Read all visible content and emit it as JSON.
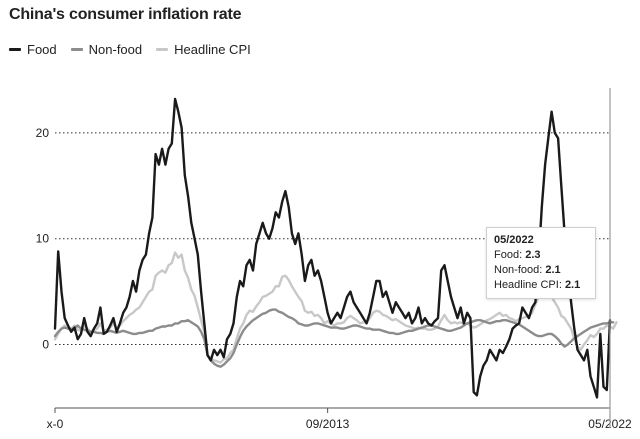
{
  "chart_data": {
    "type": "line",
    "title": "China's consumer inflation rate",
    "legend": [
      "Food",
      "Non-food",
      "Headline CPI"
    ],
    "x_tick_labels": [
      "x-0",
      "09/2013",
      "05/2022"
    ],
    "y_ticks": [
      0,
      10,
      20
    ],
    "ylim": [
      -6,
      25
    ],
    "series": [
      {
        "name": "Food",
        "color": "#1a1a1a",
        "values": [
          1.5,
          8.8,
          5.0,
          2.5,
          1.8,
          1.2,
          1.6,
          0.5,
          1.0,
          2.5,
          1.2,
          0.8,
          1.5,
          2.0,
          3.5,
          1.0,
          1.2,
          1.8,
          2.5,
          1.2,
          2.0,
          3.0,
          3.5,
          4.5,
          6.0,
          5.0,
          7.0,
          8.0,
          8.5,
          10.5,
          12.0,
          18.0,
          17.0,
          18.5,
          17.0,
          18.5,
          19.0,
          23.2,
          22.0,
          20.5,
          16.0,
          14.0,
          11.5,
          10.0,
          8.5,
          5.0,
          2.0,
          -1.0,
          -1.5,
          -0.5,
          -1.0,
          -0.5,
          -1.2,
          0.5,
          1.0,
          2.0,
          4.5,
          6.0,
          5.5,
          7.5,
          8.0,
          7.0,
          9.5,
          10.5,
          11.5,
          10.5,
          10.0,
          11.0,
          12.5,
          12.0,
          13.5,
          14.5,
          13.0,
          10.5,
          9.5,
          10.5,
          8.5,
          6.0,
          7.5,
          8.0,
          6.5,
          7.0,
          6.0,
          4.5,
          3.0,
          2.0,
          2.5,
          3.0,
          2.5,
          3.5,
          4.5,
          5.0,
          4.0,
          3.5,
          3.0,
          2.5,
          2.0,
          3.0,
          4.5,
          6.0,
          6.0,
          4.5,
          5.0,
          4.0,
          3.0,
          4.0,
          3.5,
          3.0,
          2.5,
          3.0,
          2.0,
          2.5,
          3.5,
          2.0,
          2.5,
          2.0,
          1.8,
          2.2,
          2.5,
          7.0,
          7.5,
          6.0,
          4.5,
          3.5,
          2.5,
          3.5,
          2.0,
          3.0,
          2.5,
          -4.5,
          -4.8,
          -3.0,
          -2.0,
          -1.5,
          -0.5,
          -1.0,
          -1.5,
          -0.5,
          -0.8,
          -0.2,
          0.5,
          1.5,
          1.8,
          2.0,
          3.5,
          3.0,
          2.5,
          3.5,
          4.0,
          8.0,
          13.0,
          17.0,
          19.5,
          22.0,
          20.0,
          19.5,
          15.0,
          10.5,
          7.0,
          4.0,
          1.5,
          -0.5,
          -1.0,
          -1.5,
          -0.5,
          -3.0,
          -4.0,
          -5.0,
          1.0,
          -4.0,
          -4.3,
          2.3
        ]
      },
      {
        "name": "Non-food",
        "color": "#8c8c8c",
        "values": [
          0.8,
          1.2,
          1.5,
          1.6,
          1.5,
          1.4,
          1.6,
          1.8,
          1.5,
          1.4,
          1.3,
          1.2,
          1.2,
          1.1,
          1.1,
          1.0,
          1.2,
          1.3,
          1.2,
          1.1,
          1.2,
          1.3,
          1.2,
          1.1,
          1.0,
          1.0,
          1.1,
          1.1,
          1.2,
          1.3,
          1.3,
          1.5,
          1.6,
          1.7,
          1.7,
          1.8,
          1.8,
          2.0,
          2.0,
          2.2,
          2.2,
          2.3,
          2.1,
          1.9,
          1.7,
          1.2,
          0.5,
          -1.0,
          -1.5,
          -1.8,
          -2.0,
          -2.1,
          -1.9,
          -1.6,
          -1.3,
          -0.8,
          0.0,
          0.7,
          1.3,
          1.7,
          2.0,
          2.3,
          2.5,
          2.7,
          2.9,
          3.0,
          3.2,
          3.3,
          3.3,
          3.1,
          3.0,
          2.8,
          2.6,
          2.5,
          2.3,
          2.0,
          1.9,
          1.8,
          1.8,
          1.9,
          2.0,
          2.0,
          1.9,
          1.8,
          1.7,
          1.6,
          1.6,
          1.6,
          1.5,
          1.5,
          1.6,
          1.7,
          1.8,
          1.8,
          1.7,
          1.6,
          1.5,
          1.5,
          1.4,
          1.4,
          1.4,
          1.3,
          1.2,
          1.1,
          1.1,
          1.0,
          1.0,
          1.1,
          1.2,
          1.3,
          1.3,
          1.4,
          1.5,
          1.6,
          1.7,
          1.8,
          1.8,
          1.7,
          1.6,
          1.5,
          1.4,
          1.3,
          1.3,
          1.4,
          1.5,
          1.6,
          1.8,
          2.0,
          2.1,
          2.2,
          2.3,
          2.3,
          2.2,
          2.1,
          2.0,
          2.1,
          2.2,
          2.2,
          2.3,
          2.3,
          2.2,
          2.1,
          2.0,
          1.9,
          1.7,
          1.5,
          1.3,
          1.1,
          0.9,
          0.8,
          0.8,
          0.9,
          1.0,
          1.0,
          0.8,
          0.5,
          0.1,
          -0.2,
          0.0,
          0.3,
          0.6,
          0.8,
          1.0,
          1.2,
          1.4,
          1.6,
          1.7,
          1.8,
          1.9,
          2.0,
          2.0,
          2.1,
          2.1
        ]
      },
      {
        "name": "Headline CPI",
        "color": "#c8c8c8",
        "values": [
          0.5,
          1.0,
          1.5,
          1.8,
          1.6,
          1.5,
          1.8,
          1.4,
          1.3,
          1.8,
          1.5,
          1.2,
          1.4,
          1.5,
          2.0,
          1.3,
          1.4,
          1.6,
          2.0,
          1.5,
          1.8,
          2.2,
          2.5,
          2.8,
          3.0,
          3.3,
          3.5,
          4.0,
          4.5,
          5.0,
          5.2,
          6.5,
          6.8,
          7.0,
          6.8,
          7.5,
          7.7,
          8.7,
          8.2,
          8.5,
          7.0,
          6.3,
          5.2,
          4.6,
          3.5,
          2.3,
          1.2,
          -1.0,
          -1.3,
          -1.5,
          -1.6,
          -1.7,
          -1.4,
          -1.3,
          -0.8,
          -0.5,
          0.6,
          1.5,
          2.0,
          2.8,
          3.2,
          3.1,
          3.6,
          4.0,
          4.5,
          4.6,
          4.8,
          5.0,
          5.5,
          5.5,
          6.4,
          6.5,
          6.1,
          5.5,
          5.0,
          4.5,
          4.1,
          3.2,
          3.0,
          3.1,
          2.7,
          2.8,
          2.5,
          2.0,
          2.2,
          2.0,
          1.8,
          2.0,
          2.0,
          2.1,
          2.5,
          2.7,
          2.5,
          2.3,
          2.0,
          2.1,
          2.1,
          2.5,
          3.0,
          3.2,
          3.1,
          2.8,
          2.7,
          2.5,
          2.3,
          2.4,
          2.2,
          2.0,
          1.8,
          1.7,
          1.6,
          1.5,
          1.6,
          1.5,
          1.5,
          1.4,
          1.4,
          1.5,
          1.7,
          2.3,
          2.8,
          2.3,
          2.0,
          2.1,
          2.0,
          2.1,
          1.9,
          2.0,
          1.8,
          1.6,
          1.7,
          1.9,
          2.1,
          2.3,
          2.4,
          2.6,
          2.8,
          3.0,
          2.7,
          2.8,
          2.5,
          2.4,
          2.2,
          2.4,
          2.5,
          2.6,
          2.7,
          3.0,
          3.8,
          4.5,
          5.0,
          5.2,
          4.8,
          4.5,
          4.0,
          3.5,
          2.7,
          2.5,
          2.0,
          1.5,
          0.5,
          -0.2,
          -0.5,
          0.0,
          0.4,
          0.9,
          0.7,
          1.0,
          1.5,
          1.5,
          1.8,
          1.7,
          1.5,
          2.1
        ]
      }
    ],
    "tooltip": {
      "date": "05/2022",
      "lines": [
        {
          "label": "Food:",
          "value": "2.3"
        },
        {
          "label": "Non-food:",
          "value": "2.1"
        },
        {
          "label": "Headline CPI:",
          "value": "2.1"
        }
      ]
    }
  }
}
